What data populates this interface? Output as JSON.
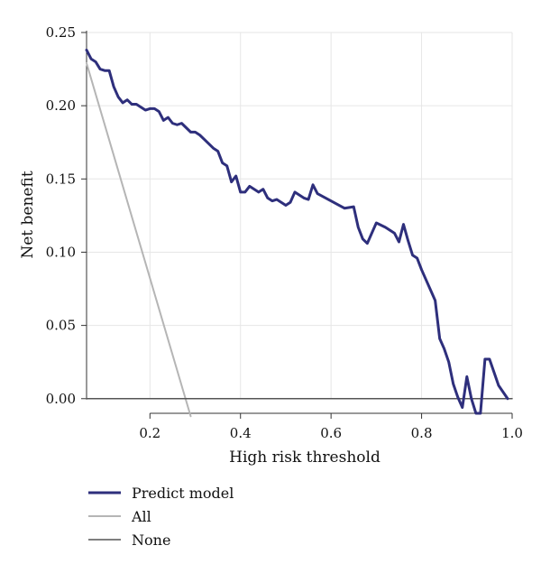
{
  "chart_data": {
    "type": "line",
    "xlabel": "High risk threshold",
    "ylabel": "Net benefit",
    "xlim": [
      0.06,
      1.0
    ],
    "ylim": [
      -0.01,
      0.25
    ],
    "x_ticks": [
      0.2,
      0.4,
      0.6,
      0.8,
      1.0
    ],
    "x_tick_labels": [
      "0.2",
      "0.4",
      "0.6",
      "0.8",
      "1.0"
    ],
    "y_ticks": [
      0.0,
      0.05,
      0.1,
      0.15,
      0.2,
      0.25
    ],
    "y_tick_labels": [
      "0.00",
      "0.05",
      "0.10",
      "0.15",
      "0.20",
      "0.25"
    ],
    "grid": true,
    "legend_position": "bottom-left",
    "series": [
      {
        "name": "Predict model",
        "color": "#2e2f7c",
        "x": [
          0.06,
          0.07,
          0.08,
          0.09,
          0.1,
          0.11,
          0.12,
          0.13,
          0.14,
          0.15,
          0.16,
          0.17,
          0.18,
          0.19,
          0.2,
          0.21,
          0.22,
          0.23,
          0.24,
          0.25,
          0.26,
          0.27,
          0.28,
          0.29,
          0.3,
          0.31,
          0.32,
          0.33,
          0.34,
          0.35,
          0.36,
          0.37,
          0.38,
          0.39,
          0.4,
          0.41,
          0.42,
          0.43,
          0.44,
          0.45,
          0.46,
          0.47,
          0.48,
          0.49,
          0.5,
          0.51,
          0.52,
          0.53,
          0.54,
          0.55,
          0.56,
          0.57,
          0.6,
          0.63,
          0.65,
          0.66,
          0.67,
          0.68,
          0.7,
          0.72,
          0.74,
          0.75,
          0.76,
          0.77,
          0.78,
          0.79,
          0.8,
          0.81,
          0.82,
          0.83,
          0.84,
          0.85,
          0.86,
          0.87,
          0.88,
          0.89,
          0.9,
          0.91,
          0.92,
          0.93,
          0.94,
          0.95,
          0.96,
          0.97,
          0.99
        ],
        "values": [
          0.238,
          0.232,
          0.23,
          0.225,
          0.224,
          0.224,
          0.213,
          0.206,
          0.202,
          0.204,
          0.201,
          0.201,
          0.199,
          0.197,
          0.198,
          0.198,
          0.196,
          0.19,
          0.192,
          0.188,
          0.187,
          0.188,
          0.185,
          0.182,
          0.182,
          0.18,
          0.177,
          0.174,
          0.171,
          0.169,
          0.161,
          0.159,
          0.148,
          0.152,
          0.141,
          0.141,
          0.145,
          0.143,
          0.141,
          0.143,
          0.137,
          0.135,
          0.136,
          0.134,
          0.132,
          0.134,
          0.141,
          0.139,
          0.137,
          0.136,
          0.146,
          0.14,
          0.135,
          0.13,
          0.131,
          0.117,
          0.109,
          0.106,
          0.12,
          0.117,
          0.113,
          0.107,
          0.119,
          0.108,
          0.098,
          0.096,
          0.088,
          0.081,
          0.074,
          0.067,
          0.041,
          0.034,
          0.025,
          0.01,
          0.001,
          -0.006,
          0.015,
          0.0,
          -0.01,
          -0.01,
          0.027,
          0.027,
          0.018,
          0.009,
          0.0
        ]
      },
      {
        "name": "All",
        "color": "#b5b5b5",
        "x": [
          0.06,
          0.29
        ],
        "values": [
          0.229,
          -0.012
        ]
      },
      {
        "name": "None",
        "color": "#555555",
        "x": [
          0.06,
          1.0
        ],
        "values": [
          0.0,
          0.0
        ]
      }
    ]
  }
}
